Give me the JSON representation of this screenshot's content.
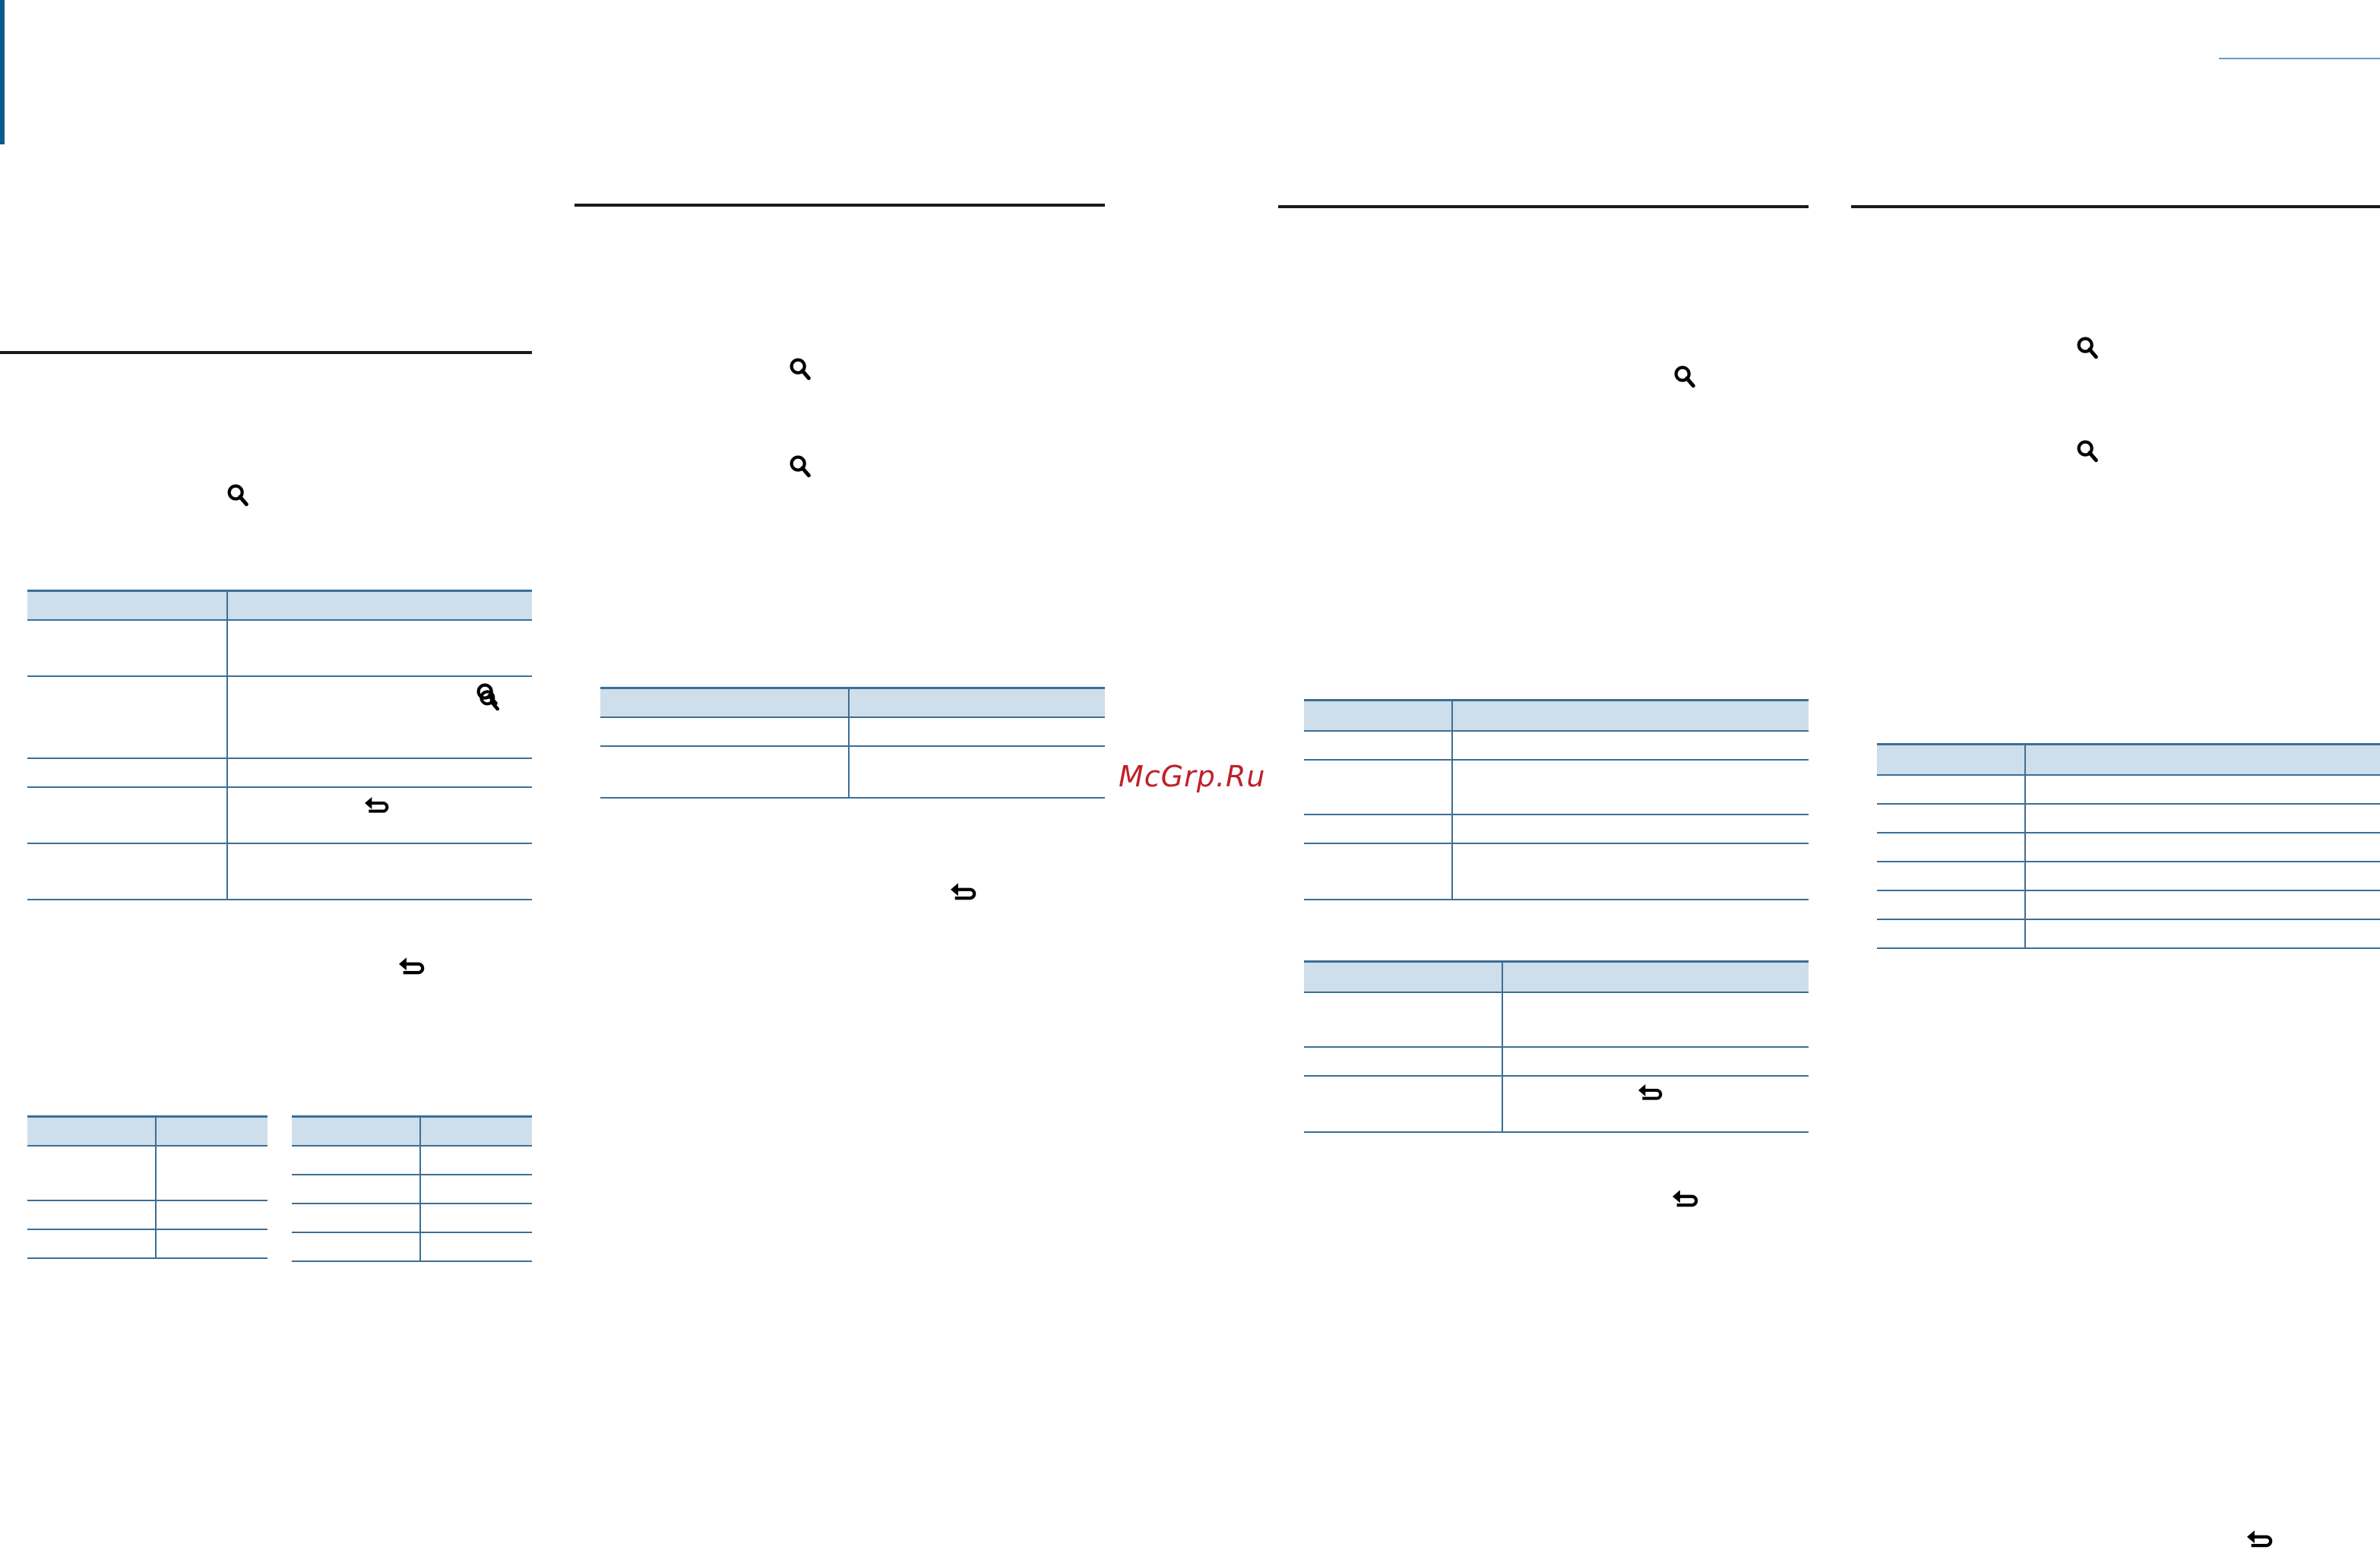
{
  "watermark": "McGrp.Ru",
  "colors": {
    "accent_bar": "#0c5a8c",
    "table_header": "#cfdeeb",
    "table_border": "#3b6f96",
    "watermark": "#c0202a"
  },
  "icons": [
    "search-icon",
    "return-icon"
  ]
}
